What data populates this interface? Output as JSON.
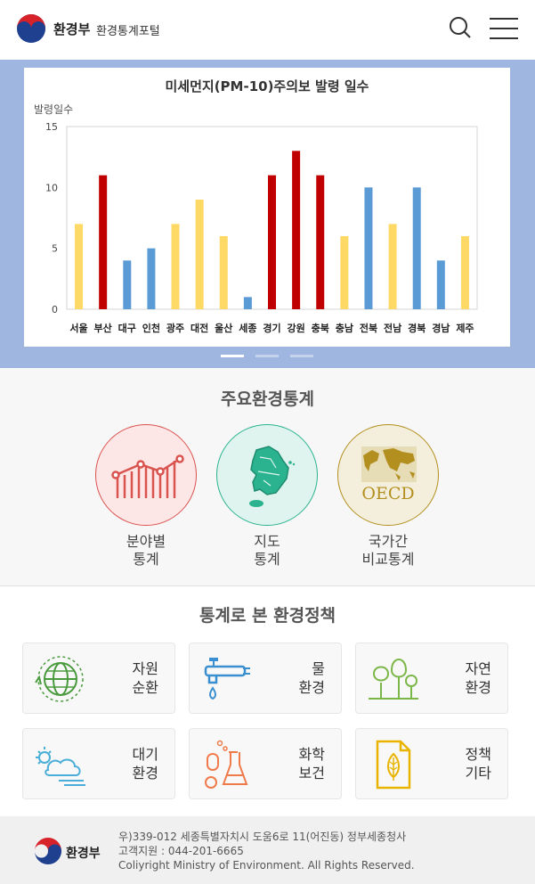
{
  "header": {
    "logo_text": "환경부",
    "portal_title": "환경통계포털"
  },
  "banner": {
    "slides": 3,
    "active_slide": 0
  },
  "chart_data": {
    "type": "bar",
    "title": "미세먼지(PM-10)주의보 발령 일수",
    "ylabel": "발령일수",
    "xlabel": "",
    "ylim": [
      0,
      15
    ],
    "yticks": [
      0,
      5,
      10,
      15
    ],
    "categories": [
      "서울",
      "부산",
      "대구",
      "인천",
      "광주",
      "대전",
      "울산",
      "세종",
      "경기",
      "강원",
      "충북",
      "충남",
      "전북",
      "전남",
      "경북",
      "경남",
      "제주"
    ],
    "values": [
      7,
      11,
      4,
      5,
      7,
      9,
      6,
      1,
      11,
      13,
      11,
      6,
      10,
      7,
      10,
      4,
      6
    ],
    "bar_colors": [
      "#ffd966",
      "#c00000",
      "#5b9bd5",
      "#5b9bd5",
      "#ffd966",
      "#ffd966",
      "#ffd966",
      "#5b9bd5",
      "#c00000",
      "#c00000",
      "#c00000",
      "#ffd966",
      "#5b9bd5",
      "#ffd966",
      "#5b9bd5",
      "#5b9bd5",
      "#ffd966"
    ],
    "grid": false
  },
  "main_stats": {
    "title": "주요환경통계",
    "items": [
      {
        "line1": "분야별",
        "line2": "통계",
        "icon": "line-chart-icon",
        "color": "#d9534f"
      },
      {
        "line1": "지도",
        "line2": "통계",
        "icon": "korea-map-icon",
        "color": "#2bb38f"
      },
      {
        "line1": "국가간",
        "line2": "비교통계",
        "icon": "oecd-world-map-icon",
        "color": "#b38f1f"
      }
    ]
  },
  "policy": {
    "title": "통계로 본 환경정책",
    "cards": [
      {
        "line1": "자원",
        "line2": "순환",
        "icon": "globe-recycle-icon"
      },
      {
        "line1": "물",
        "line2": "환경",
        "icon": "water-faucet-icon"
      },
      {
        "line1": "자연",
        "line2": "환경",
        "icon": "trees-icon"
      },
      {
        "line1": "대기",
        "line2": "환경",
        "icon": "sun-cloud-icon"
      },
      {
        "line1": "화학",
        "line2": "보건",
        "icon": "chemical-flask-icon"
      },
      {
        "line1": "정책",
        "line2": "기타",
        "icon": "policy-document-icon"
      }
    ]
  },
  "footer": {
    "logo_text": "환경부",
    "address": "우)339-012 세종특별자치시 도움6로 11(어진동) 정부세종청사",
    "support": "고객지원 : 044-201-6665",
    "copyright": "Coliyright Ministry of Environment. All Rights Reserved."
  }
}
